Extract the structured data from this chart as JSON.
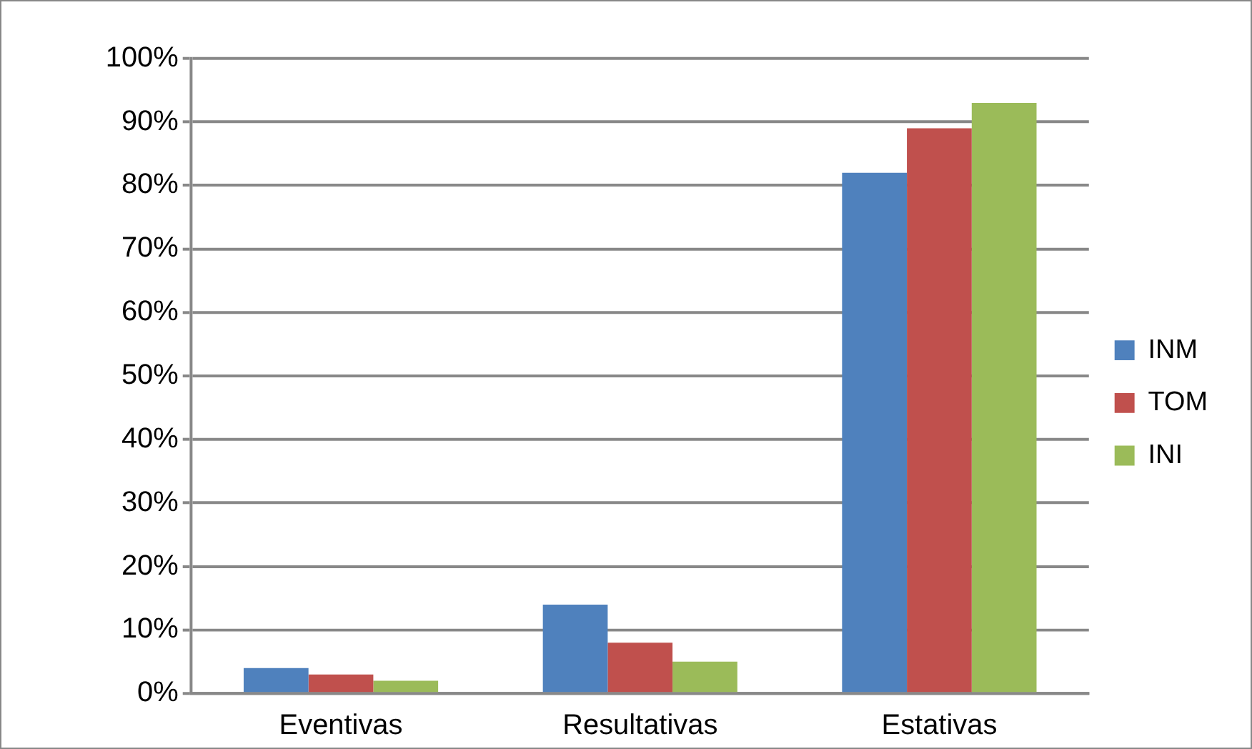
{
  "chart_data": {
    "type": "bar",
    "categories": [
      "Eventivas",
      "Resultativas",
      "Estativas"
    ],
    "series": [
      {
        "name": "INM",
        "color": "#4f81bd",
        "values": [
          4,
          14,
          82
        ]
      },
      {
        "name": "TOM",
        "color": "#c0504d",
        "values": [
          3,
          8,
          89
        ]
      },
      {
        "name": "INI",
        "color": "#9bbb59",
        "values": [
          2,
          5,
          93
        ]
      }
    ],
    "ylim": [
      0,
      100
    ],
    "yticks": [
      {
        "value": 0,
        "label": "0%"
      },
      {
        "value": 10,
        "label": "10%"
      },
      {
        "value": 20,
        "label": "20%"
      },
      {
        "value": 30,
        "label": "30%"
      },
      {
        "value": 40,
        "label": "40%"
      },
      {
        "value": 50,
        "label": "50%"
      },
      {
        "value": 60,
        "label": "60%"
      },
      {
        "value": 70,
        "label": "70%"
      },
      {
        "value": 80,
        "label": "80%"
      },
      {
        "value": 90,
        "label": "90%"
      },
      {
        "value": 100,
        "label": "100%"
      }
    ],
    "grid": "y",
    "legend": "right"
  }
}
